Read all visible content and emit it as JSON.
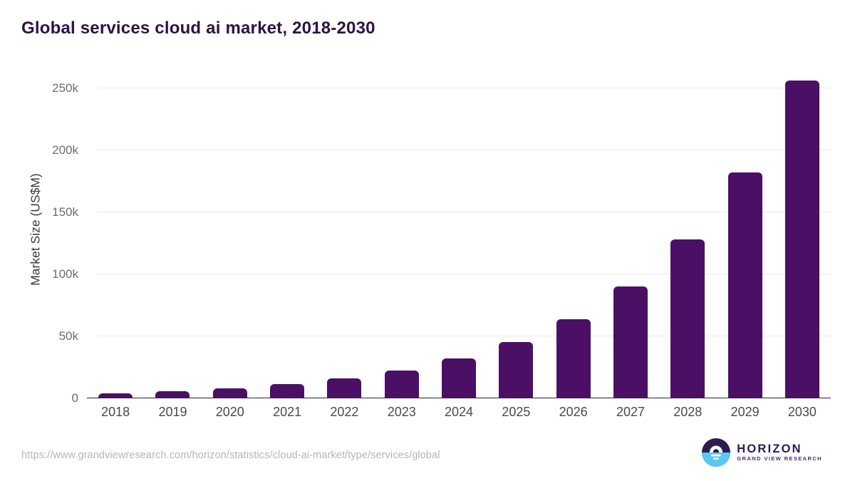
{
  "title": "Global services cloud ai market, 2018-2030",
  "footer": {
    "source_url": "https://www.grandviewresearch.com/horizon/statistics/cloud-ai-market/type/services/global"
  },
  "logo": {
    "name": "HORIZON",
    "subtitle": "GRAND VIEW RESEARCH"
  },
  "colors": {
    "bar": "#4b1065",
    "title": "#2d1245",
    "gridline": "#e8e8e8",
    "axis_line": "#2b2b2b",
    "ytick_label": "#6e6e6e",
    "xtick_label": "#4a4a4a",
    "axis_title": "#3b3b3b",
    "url_text": "#b5b5b5",
    "logo_navy": "#2d1b4e",
    "logo_blue": "#5ac8f0",
    "logo_subtext": "#4a2d6e"
  },
  "chart_data": {
    "type": "bar",
    "title": "Global services cloud ai market, 2018-2030",
    "xlabel": "",
    "ylabel": "Market Size (US$M)",
    "categories": [
      "2018",
      "2019",
      "2020",
      "2021",
      "2022",
      "2023",
      "2024",
      "2025",
      "2026",
      "2027",
      "2028",
      "2029",
      "2030"
    ],
    "values": [
      4000,
      5700,
      8000,
      11300,
      16000,
      22600,
      32000,
      45300,
      64000,
      90500,
      128000,
      182000,
      256500
    ],
    "ylim": [
      0,
      260000
    ],
    "yticks": [
      {
        "value": 0,
        "label": "0"
      },
      {
        "value": 50000,
        "label": "50k"
      },
      {
        "value": 100000,
        "label": "100k"
      },
      {
        "value": 150000,
        "label": "150k"
      },
      {
        "value": 200000,
        "label": "200k"
      },
      {
        "value": 250000,
        "label": "250k"
      }
    ],
    "grid": "horizontal",
    "legend": "none",
    "bar_color": "#4b1065"
  }
}
